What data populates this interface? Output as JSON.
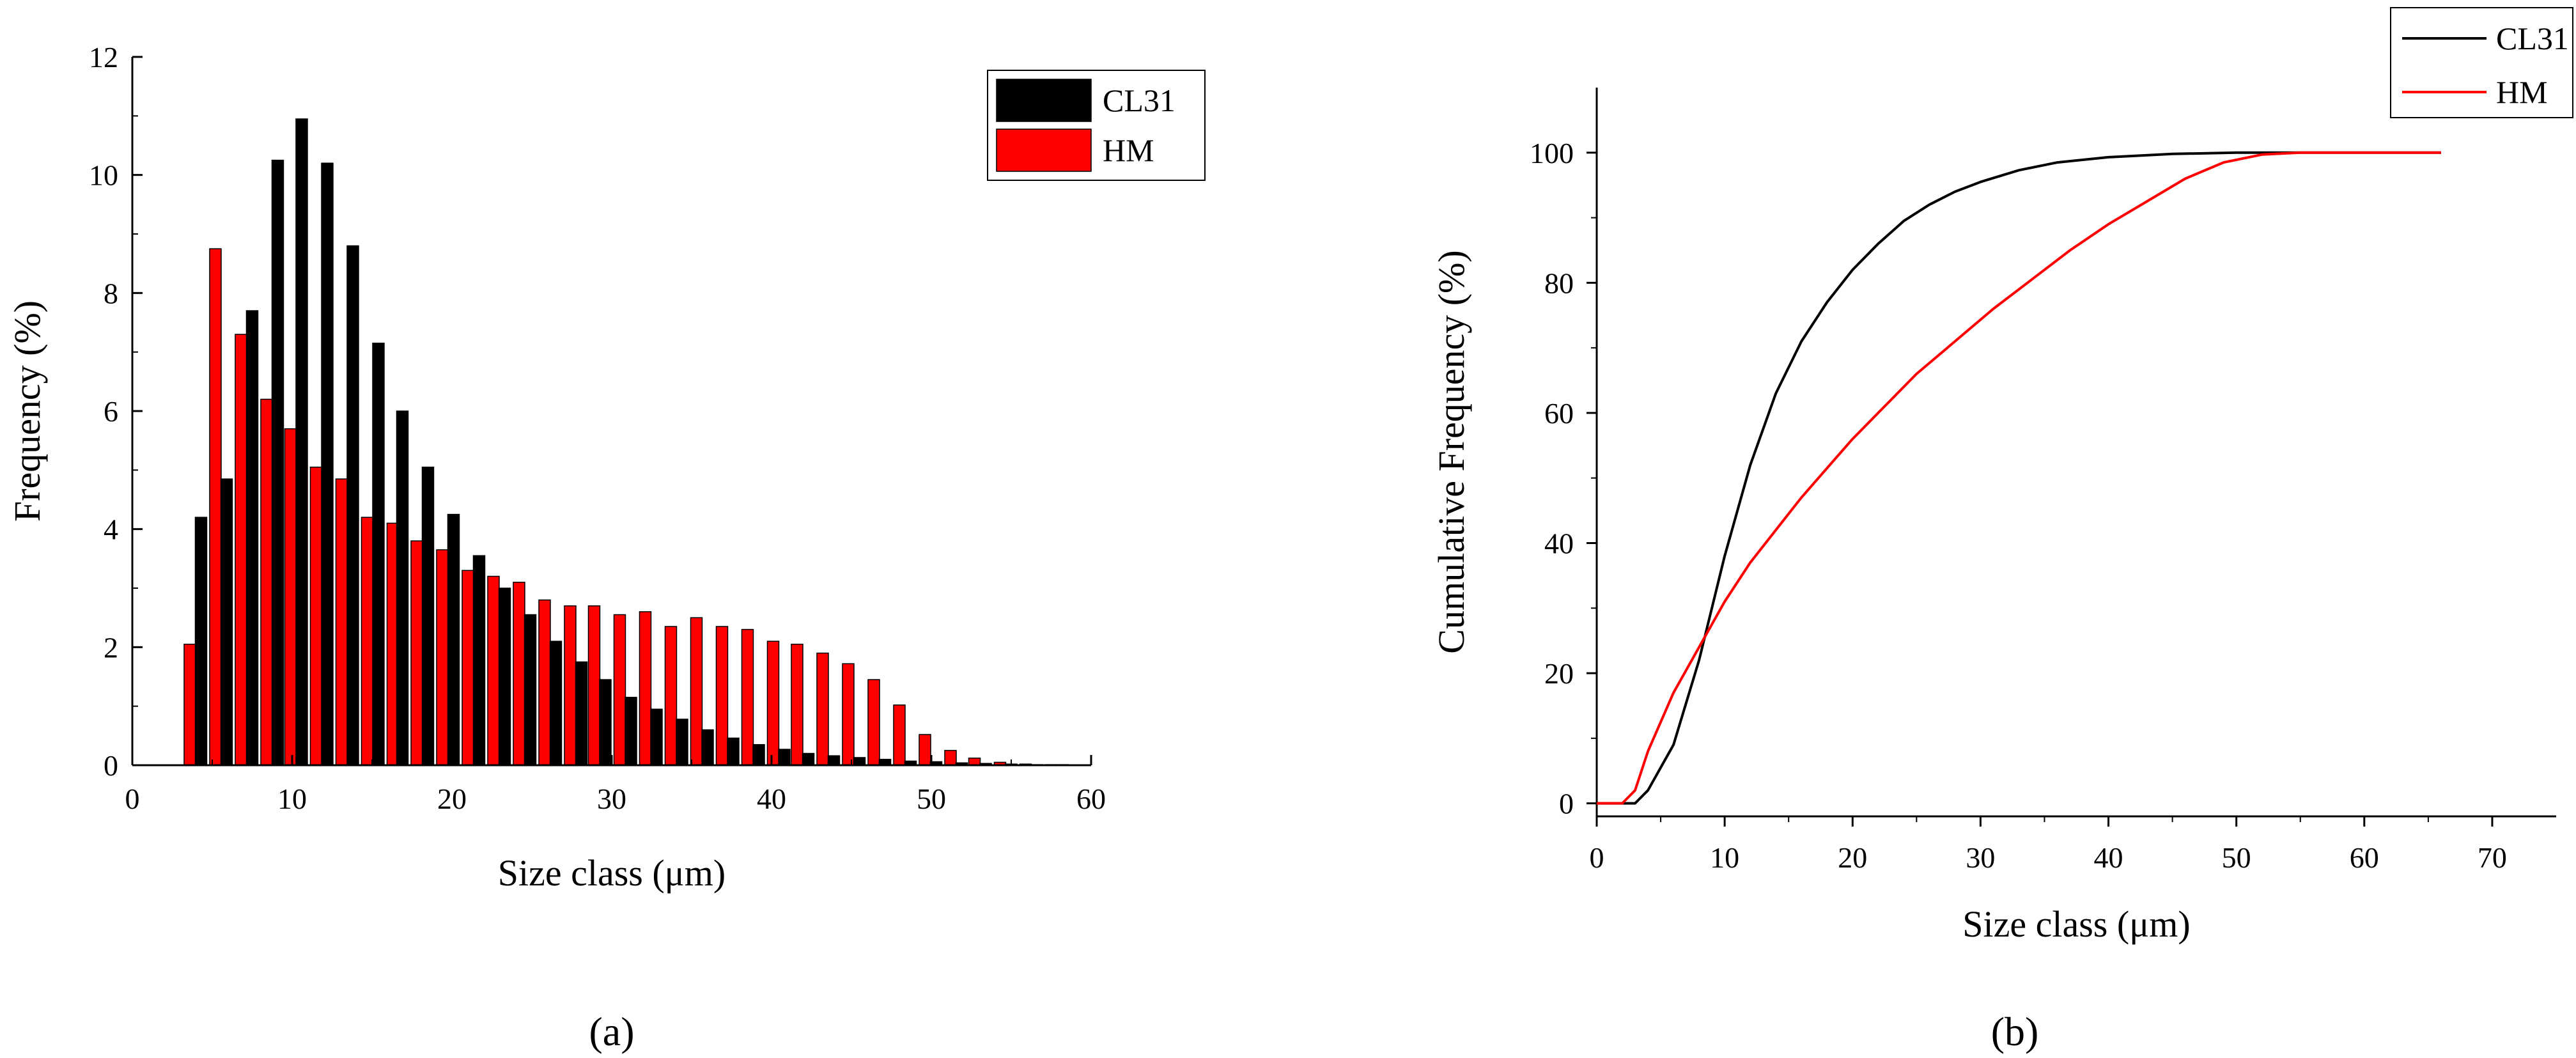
{
  "chart_data": [
    {
      "panel_label": "(a)",
      "type": "bar",
      "xlabel": "Size class (μm)",
      "ylabel": "Frequency (%)",
      "xlim": [
        0,
        60
      ],
      "ylim": [
        0,
        12
      ],
      "xticks": [
        0,
        10,
        20,
        30,
        40,
        50,
        60
      ],
      "yticks": [
        0,
        2,
        4,
        6,
        8,
        10,
        12
      ],
      "grid": false,
      "legend_position": "top-right",
      "series": [
        {
          "name": "CL31",
          "color": "#000000",
          "x": [
            4.3,
            5.9,
            7.5,
            9.1,
            10.6,
            12.2,
            13.8,
            15.4,
            16.9,
            18.5,
            20.1,
            21.7,
            23.3,
            24.9,
            26.5,
            28.1,
            29.6,
            31.2,
            32.8,
            34.4,
            36.0,
            37.6,
            39.2,
            40.8,
            42.3,
            43.9,
            45.5,
            47.1,
            48.7,
            50.3,
            51.9,
            53.4,
            55.0,
            56.6,
            58.2
          ],
          "values": [
            4.2,
            4.85,
            7.7,
            10.25,
            10.95,
            10.2,
            8.8,
            7.15,
            6.0,
            5.05,
            4.25,
            3.55,
            3.0,
            2.55,
            2.1,
            1.75,
            1.45,
            1.15,
            0.95,
            0.78,
            0.6,
            0.46,
            0.35,
            0.27,
            0.2,
            0.16,
            0.13,
            0.1,
            0.07,
            0.06,
            0.04,
            0.03,
            0.02,
            0.01,
            0.01
          ]
        },
        {
          "name": "HM",
          "color": "#ff0000",
          "x": [
            3.6,
            5.2,
            6.8,
            8.4,
            9.9,
            11.5,
            13.1,
            14.7,
            16.3,
            17.8,
            19.4,
            21.0,
            22.6,
            24.2,
            25.8,
            27.4,
            28.9,
            30.5,
            32.1,
            33.7,
            35.3,
            36.9,
            38.5,
            40.1,
            41.6,
            43.2,
            44.8,
            46.4,
            48.0,
            49.6,
            51.2,
            52.7,
            54.3,
            55.9,
            57.5
          ],
          "values": [
            2.05,
            8.75,
            7.3,
            6.2,
            5.7,
            5.05,
            4.85,
            4.2,
            4.1,
            3.8,
            3.65,
            3.3,
            3.2,
            3.1,
            2.8,
            2.7,
            2.7,
            2.55,
            2.6,
            2.35,
            2.5,
            2.35,
            2.3,
            2.1,
            2.05,
            1.9,
            1.72,
            1.45,
            1.02,
            0.52,
            0.25,
            0.12,
            0.05,
            0.02,
            0.01
          ]
        }
      ]
    },
    {
      "panel_label": "(b)",
      "type": "line",
      "xlabel": "Size class (μm)",
      "ylabel": "Cumulative Frequency (%)",
      "xlim": [
        0,
        75
      ],
      "ylim": [
        -2,
        110
      ],
      "xticks": [
        0,
        10,
        20,
        30,
        40,
        50,
        60,
        70
      ],
      "yticks": [
        0,
        20,
        40,
        60,
        80,
        100
      ],
      "grid": false,
      "legend_position": "top-right",
      "series": [
        {
          "name": "CL31",
          "color": "#000000",
          "x": [
            0,
            3,
            4,
            6,
            8,
            10,
            12,
            14,
            16,
            18,
            20,
            22,
            24,
            26,
            28,
            30,
            33,
            36,
            40,
            45,
            50,
            55,
            60,
            66
          ],
          "y": [
            0,
            0,
            2,
            9,
            22,
            38,
            52,
            63,
            71,
            77,
            82,
            86,
            89.5,
            92,
            94,
            95.5,
            97.3,
            98.5,
            99.3,
            99.8,
            100,
            100,
            100,
            100
          ]
        },
        {
          "name": "HM",
          "color": "#ff0000",
          "x": [
            0,
            2,
            3,
            4,
            6,
            8,
            10,
            12,
            14,
            16,
            18,
            20,
            22,
            25,
            28,
            31,
            34,
            37,
            40,
            43,
            46,
            49,
            52,
            55,
            60,
            66
          ],
          "y": [
            0,
            0,
            2,
            8,
            17,
            24,
            31,
            37,
            42,
            47,
            51.5,
            56,
            60,
            66,
            71,
            76,
            80.5,
            85,
            89,
            92.5,
            96,
            98.5,
            99.7,
            100,
            100,
            100
          ]
        }
      ]
    }
  ]
}
